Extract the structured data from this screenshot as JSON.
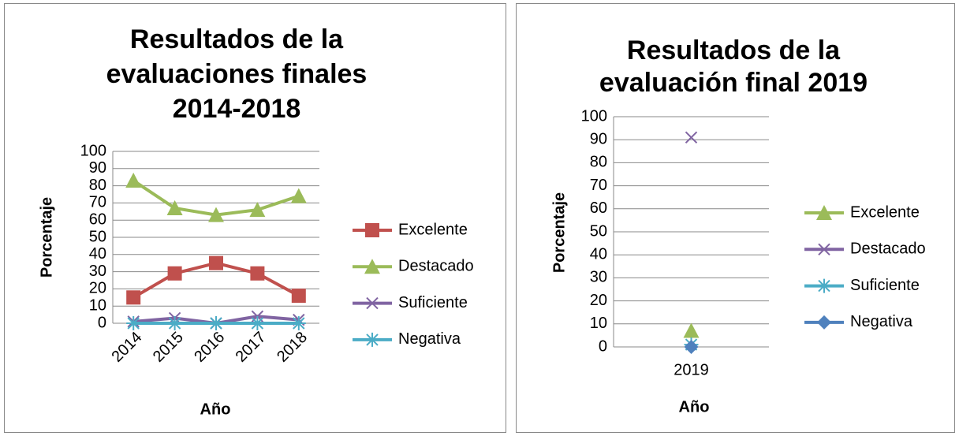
{
  "chart_data": [
    {
      "type": "line",
      "title": "Resultados de la evaluaciones finales 2014-2018",
      "xlabel": "Año",
      "ylabel": "Porcentaje",
      "categories": [
        "2014",
        "2015",
        "2016",
        "2017",
        "2018"
      ],
      "ylim": [
        0,
        100
      ],
      "yticks": [
        0,
        10,
        20,
        30,
        40,
        50,
        60,
        70,
        80,
        90,
        100
      ],
      "grid": true,
      "xtick_rotation": -45,
      "series": [
        {
          "name": "Excelente",
          "color": "#c0504d",
          "marker": "square",
          "values": [
            15,
            29,
            35,
            29,
            16
          ]
        },
        {
          "name": "Destacado",
          "color": "#9bbb59",
          "marker": "triangle",
          "values": [
            83,
            67,
            63,
            66,
            74
          ]
        },
        {
          "name": "Suficiente",
          "color": "#8064a2",
          "marker": "x",
          "values": [
            1,
            3,
            0,
            4,
            2
          ]
        },
        {
          "name": "Negativa",
          "color": "#4bacc6",
          "marker": "star",
          "values": [
            0,
            0,
            0,
            0,
            0
          ]
        }
      ]
    },
    {
      "type": "line",
      "title": "Resultados de la evaluación final 2019",
      "xlabel": "Año",
      "ylabel": "Porcentaje",
      "categories": [
        "2019"
      ],
      "ylim": [
        0,
        100
      ],
      "yticks": [
        0,
        10,
        20,
        30,
        40,
        50,
        60,
        70,
        80,
        90,
        100
      ],
      "grid": true,
      "series": [
        {
          "name": "Excelente",
          "color": "#9bbb59",
          "marker": "triangle",
          "values": [
            7
          ]
        },
        {
          "name": "Destacado",
          "color": "#8064a2",
          "marker": "x",
          "values": [
            91
          ]
        },
        {
          "name": "Suficiente",
          "color": "#4bacc6",
          "marker": "star",
          "values": [
            1
          ]
        },
        {
          "name": "Negativa",
          "color": "#4f81bd",
          "marker": "diamond",
          "values": [
            0
          ]
        }
      ]
    }
  ]
}
